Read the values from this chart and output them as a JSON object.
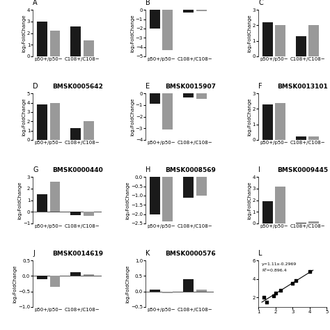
{
  "panels": [
    {
      "label": "A",
      "title": "",
      "bars": [
        3.0,
        2.2,
        2.6,
        1.4
      ],
      "ylim": [
        0,
        4
      ],
      "yticks": [
        0,
        1,
        2,
        3,
        4
      ],
      "zero_line": false
    },
    {
      "label": "B",
      "title": "",
      "bars": [
        -2.0,
        -4.3,
        -0.25,
        -0.15
      ],
      "ylim": [
        -5,
        0
      ],
      "yticks": [
        -5,
        -4,
        -3,
        -2,
        -1,
        0
      ],
      "zero_line": false
    },
    {
      "label": "C",
      "title": "",
      "bars": [
        2.2,
        2.0,
        1.3,
        2.0
      ],
      "ylim": [
        0,
        3
      ],
      "yticks": [
        0,
        1,
        2,
        3
      ],
      "zero_line": false
    },
    {
      "label": "D",
      "title": "BMSK0005642",
      "bars": [
        3.8,
        4.0,
        1.3,
        2.0
      ],
      "ylim": [
        0,
        5
      ],
      "yticks": [
        0,
        1,
        2,
        3,
        4,
        5
      ],
      "zero_line": false
    },
    {
      "label": "E",
      "title": "BMSK0015907",
      "bars": [
        -0.9,
        -3.1,
        -0.35,
        -0.45
      ],
      "ylim": [
        -4,
        0
      ],
      "yticks": [
        -4,
        -3,
        -2,
        -1,
        0
      ],
      "zero_line": false
    },
    {
      "label": "F",
      "title": "BMSK0013101",
      "bars": [
        2.3,
        2.4,
        0.2,
        0.2
      ],
      "ylim": [
        0,
        3
      ],
      "yticks": [
        0,
        1,
        2,
        3
      ],
      "zero_line": false
    },
    {
      "label": "G",
      "title": "BMSK0000440",
      "bars": [
        1.5,
        2.6,
        -0.3,
        -0.35
      ],
      "ylim": [
        -1,
        3
      ],
      "yticks": [
        -1,
        0,
        1,
        2,
        3
      ],
      "zero_line": true
    },
    {
      "label": "H",
      "title": "BMSK0008569",
      "bars": [
        -2.0,
        -2.4,
        -1.1,
        -1.0
      ],
      "ylim": [
        -2.5,
        0.0
      ],
      "yticks": [
        -2.5,
        -2.0,
        -1.5,
        -1.0,
        -0.5,
        0.0
      ],
      "zero_line": false
    },
    {
      "label": "I",
      "title": "BMSK0009445",
      "bars": [
        1.9,
        3.2,
        0.05,
        0.2
      ],
      "ylim": [
        0,
        4
      ],
      "yticks": [
        0,
        1,
        2,
        3,
        4
      ],
      "zero_line": false
    },
    {
      "label": "J",
      "title": "BMSK0014619",
      "bars": [
        -0.1,
        -0.35,
        0.12,
        0.05
      ],
      "ylim": [
        -1.0,
        0.5
      ],
      "yticks": [
        -1.0,
        -0.5,
        0.0,
        0.5
      ],
      "zero_line": true
    },
    {
      "label": "K",
      "title": "BMSK0000576",
      "bars": [
        0.05,
        -0.05,
        0.4,
        0.05
      ],
      "ylim": [
        -0.5,
        1.0
      ],
      "yticks": [
        -0.5,
        0.0,
        0.5,
        1.0
      ],
      "zero_line": true
    }
  ],
  "scatter": {
    "label": "L",
    "x": [
      1.3,
      1.5,
      1.9,
      2.0,
      2.3,
      3.0,
      3.2,
      4.0
    ],
    "y": [
      2.0,
      1.5,
      2.2,
      2.5,
      2.8,
      3.5,
      3.8,
      4.8
    ],
    "equation": "y=1.11x-0.2969",
    "r2": "R²=0.896.4",
    "xlim": [
      1,
      5
    ],
    "ylim": [
      1,
      6
    ],
    "xticks": [
      1,
      2,
      3,
      4,
      5
    ],
    "yticks": [
      2,
      4,
      6
    ]
  },
  "bar_colors": [
    "#1a1a1a",
    "#999999"
  ],
  "xlabel_groups": [
    "p50+/p50−",
    "C108+/C108−"
  ],
  "ylabel": "log₂FoldChange",
  "title_fontsize": 6.5,
  "label_fontsize": 7,
  "tick_fontsize": 5,
  "axis_label_fontsize": 5
}
